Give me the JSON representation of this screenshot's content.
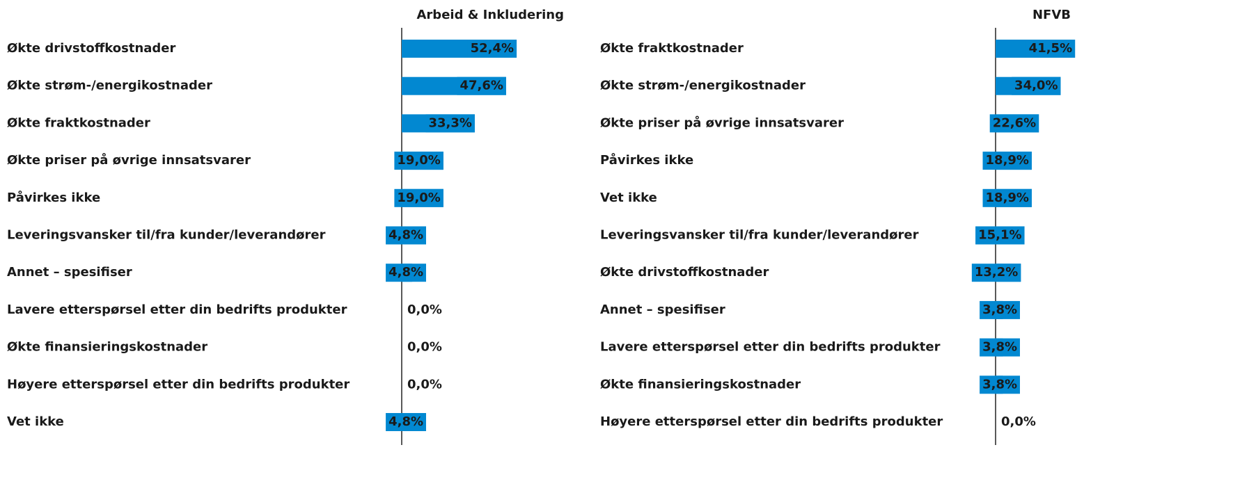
{
  "chart_data": [
    {
      "type": "bar",
      "orientation": "horizontal",
      "title": "Arbeid & Inkludering",
      "color": "#0288d1",
      "categories": [
        "Økte drivstoffkostnader",
        "Økte strøm-/energikostnader",
        "Økte fraktkostnader",
        "Økte priser på øvrige innsatsvarer",
        "Påvirkes ikke",
        "Leveringsvansker til/fra kunder/leverandører",
        "Annet – spesifiser",
        "Lavere etterspørsel etter din bedrifts produkter",
        "Økte finansieringskostnader",
        "Høyere etterspørsel etter din bedrifts produkter",
        "Vet ikke"
      ],
      "values": [
        52.4,
        47.6,
        33.3,
        19.0,
        19.0,
        4.8,
        4.8,
        0.0,
        0.0,
        0.0,
        4.8
      ],
      "value_labels": [
        "52,4%",
        "47,6%",
        "33,3%",
        "19,0%",
        "19,0%",
        "4,8%",
        "4,8%",
        "0,0%",
        "0,0%",
        "0,0%",
        "4,8%"
      ],
      "xlim": [
        0,
        60
      ]
    },
    {
      "type": "bar",
      "orientation": "horizontal",
      "title": "NFVB",
      "color": "#0288d1",
      "categories": [
        "Økte fraktkostnader",
        "Økte strøm-/energikostnader",
        "Økte priser på øvrige innsatsvarer",
        "Påvirkes ikke",
        "Vet ikke",
        "Leveringsvansker til/fra kunder/leverandører",
        "Økte drivstoffkostnader",
        "Annet – spesifiser",
        "Lavere etterspørsel etter din bedrifts produkter",
        "Økte finansieringskostnader",
        "Høyere etterspørsel etter din bedrifts produkter"
      ],
      "values": [
        41.5,
        34.0,
        22.6,
        18.9,
        18.9,
        15.1,
        13.2,
        3.8,
        3.8,
        3.8,
        0.0
      ],
      "value_labels": [
        "41,5%",
        "34,0%",
        "22,6%",
        "18,9%",
        "18,9%",
        "15,1%",
        "13,2%",
        "3,8%",
        "3,8%",
        "3,8%",
        "0,0%"
      ],
      "xlim": [
        0,
        60
      ]
    }
  ]
}
